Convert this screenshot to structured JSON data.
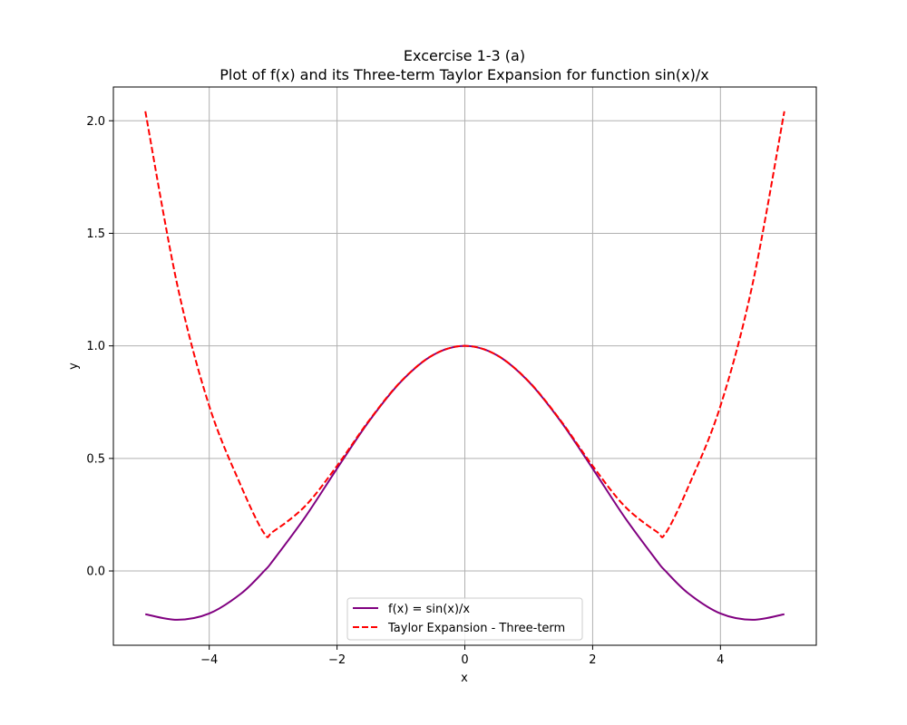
{
  "chart_data": {
    "type": "line",
    "title": "Excercise 1-3 (a)",
    "subtitle": "Plot of f(x) and its Three-term Taylor Expansion for function sin(x)/x",
    "xlabel": "x",
    "ylabel": "y",
    "xlim": [
      -5.5,
      5.5
    ],
    "ylim": [
      -0.33,
      2.15
    ],
    "xticks": [
      -4,
      -2,
      0,
      2,
      4
    ],
    "xtick_labels": [
      "−4",
      "−2",
      "0",
      "2",
      "4"
    ],
    "yticks": [
      0.0,
      0.5,
      1.0,
      1.5,
      2.0
    ],
    "ytick_labels": [
      "0.0",
      "0.5",
      "1.0",
      "1.5",
      "2.0"
    ],
    "grid": true,
    "legend_position": "bottom-center",
    "x": [
      -5.0,
      -4.5,
      -4.0,
      -3.5,
      -3.14,
      -3.0,
      -2.5,
      -2.0,
      -1.5,
      -1.0,
      -0.5,
      0.0,
      0.5,
      1.0,
      1.5,
      2.0,
      2.5,
      3.0,
      3.14,
      3.5,
      4.0,
      4.5,
      5.0
    ],
    "series": [
      {
        "name": "f(x) = sin(x)/x",
        "color": "#800080",
        "dash": "solid",
        "values": [
          -0.192,
          -0.217,
          -0.189,
          -0.1,
          0.0,
          0.047,
          0.239,
          0.455,
          0.665,
          0.841,
          0.959,
          1.0,
          0.959,
          0.841,
          0.665,
          0.455,
          0.239,
          0.047,
          0.0,
          -0.1,
          -0.189,
          -0.217,
          -0.192
        ]
      },
      {
        "name": "Taylor Expansion - Three-term",
        "color": "#ff0000",
        "dash": "dashed",
        "values": [
          2.042,
          1.271,
          0.733,
          0.376,
          0.167,
          0.175,
          0.288,
          0.467,
          0.668,
          0.842,
          0.959,
          1.0,
          0.959,
          0.842,
          0.668,
          0.467,
          0.288,
          0.175,
          0.167,
          0.376,
          0.733,
          1.271,
          2.042
        ]
      }
    ]
  }
}
